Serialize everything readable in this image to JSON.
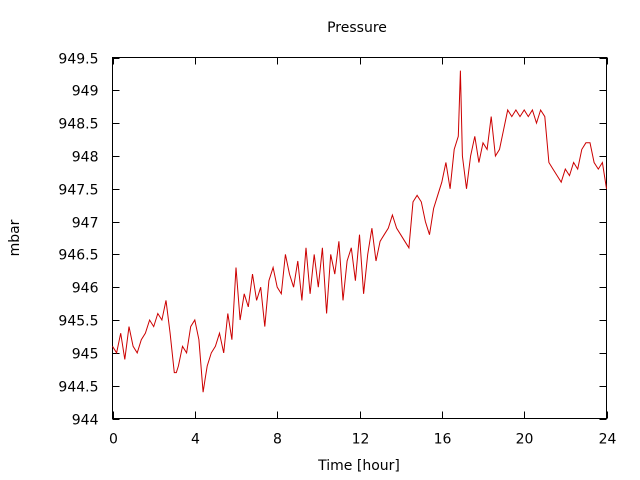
{
  "chart_data": {
    "type": "line",
    "title": "Pressure",
    "xlabel": "Time [hour]",
    "ylabel": "mbar",
    "xlim": [
      0,
      24
    ],
    "ylim": [
      944,
      949.5
    ],
    "xticks": [
      0,
      4,
      8,
      12,
      16,
      20,
      24
    ],
    "xtick_labels": [
      "0",
      "4",
      "8",
      "12",
      "16",
      "20",
      "24"
    ],
    "yticks": [
      944,
      944.5,
      945,
      945.5,
      946,
      946.5,
      947,
      947.5,
      948,
      948.5,
      949,
      949.5
    ],
    "ytick_labels": [
      "944",
      "944.5",
      "945",
      "945.5",
      "946",
      "946.5",
      "947",
      "947.5",
      "948",
      "948.5",
      "949",
      "949.5"
    ],
    "grid": false,
    "legend": "none",
    "line_color": "#cc0000",
    "series": [
      {
        "x": [
          0,
          0.2,
          0.4,
          0.6,
          0.8,
          1.0,
          1.2,
          1.4,
          1.6,
          1.8,
          2.0,
          2.2,
          2.4,
          2.6,
          2.8,
          3.0,
          3.1,
          3.2,
          3.4,
          3.6,
          3.8,
          4.0,
          4.2,
          4.4,
          4.5,
          4.6,
          4.8,
          5.0,
          5.2,
          5.4,
          5.6,
          5.8,
          6.0,
          6.2,
          6.4,
          6.6,
          6.8,
          7.0,
          7.2,
          7.4,
          7.6,
          7.8,
          8.0,
          8.2,
          8.4,
          8.6,
          8.8,
          9.0,
          9.2,
          9.4,
          9.6,
          9.8,
          10.0,
          10.2,
          10.4,
          10.6,
          10.8,
          11.0,
          11.2,
          11.4,
          11.6,
          11.8,
          12.0,
          12.2,
          12.4,
          12.6,
          12.8,
          13.0,
          13.2,
          13.4,
          13.6,
          13.8,
          14.0,
          14.2,
          14.4,
          14.6,
          14.8,
          15.0,
          15.2,
          15.4,
          15.6,
          15.8,
          16.0,
          16.2,
          16.4,
          16.6,
          16.8,
          16.9,
          17.0,
          17.2,
          17.4,
          17.6,
          17.8,
          18.0,
          18.2,
          18.4,
          18.6,
          18.8,
          19.0,
          19.2,
          19.4,
          19.6,
          19.8,
          20.0,
          20.2,
          20.4,
          20.6,
          20.8,
          21.0,
          21.2,
          21.4,
          21.6,
          21.8,
          22.0,
          22.2,
          22.4,
          22.6,
          22.8,
          23.0,
          23.2,
          23.4,
          23.6,
          23.8,
          24.0
        ],
        "y": [
          945.1,
          945.0,
          945.3,
          944.9,
          945.4,
          945.1,
          945.0,
          945.2,
          945.3,
          945.5,
          945.4,
          945.6,
          945.5,
          945.8,
          945.3,
          944.7,
          944.7,
          944.8,
          945.1,
          945.0,
          945.4,
          945.5,
          945.2,
          944.4,
          944.6,
          944.8,
          945.0,
          945.1,
          945.3,
          945.0,
          945.6,
          945.2,
          946.3,
          945.5,
          945.9,
          945.7,
          946.2,
          945.8,
          946.0,
          945.4,
          946.1,
          946.3,
          946.0,
          945.9,
          946.5,
          946.2,
          946.0,
          946.4,
          945.8,
          946.6,
          945.9,
          946.5,
          946.0,
          946.6,
          945.6,
          946.5,
          946.2,
          946.7,
          945.8,
          946.4,
          946.6,
          946.1,
          946.8,
          945.9,
          946.5,
          946.9,
          946.4,
          946.7,
          946.8,
          946.9,
          947.1,
          946.9,
          946.8,
          946.7,
          946.6,
          947.3,
          947.4,
          947.3,
          947.0,
          946.8,
          947.2,
          947.4,
          947.6,
          947.9,
          947.5,
          948.1,
          948.3,
          949.3,
          948.0,
          947.5,
          948.0,
          948.3,
          947.9,
          948.2,
          948.1,
          948.6,
          948.0,
          948.1,
          948.4,
          948.7,
          948.6,
          948.7,
          948.6,
          948.7,
          948.6,
          948.7,
          948.5,
          948.7,
          948.6,
          947.9,
          947.8,
          947.7,
          947.6,
          947.8,
          947.7,
          947.9,
          947.8,
          948.1,
          948.2,
          948.2,
          947.9,
          947.8,
          947.9,
          947.5
        ]
      }
    ]
  }
}
